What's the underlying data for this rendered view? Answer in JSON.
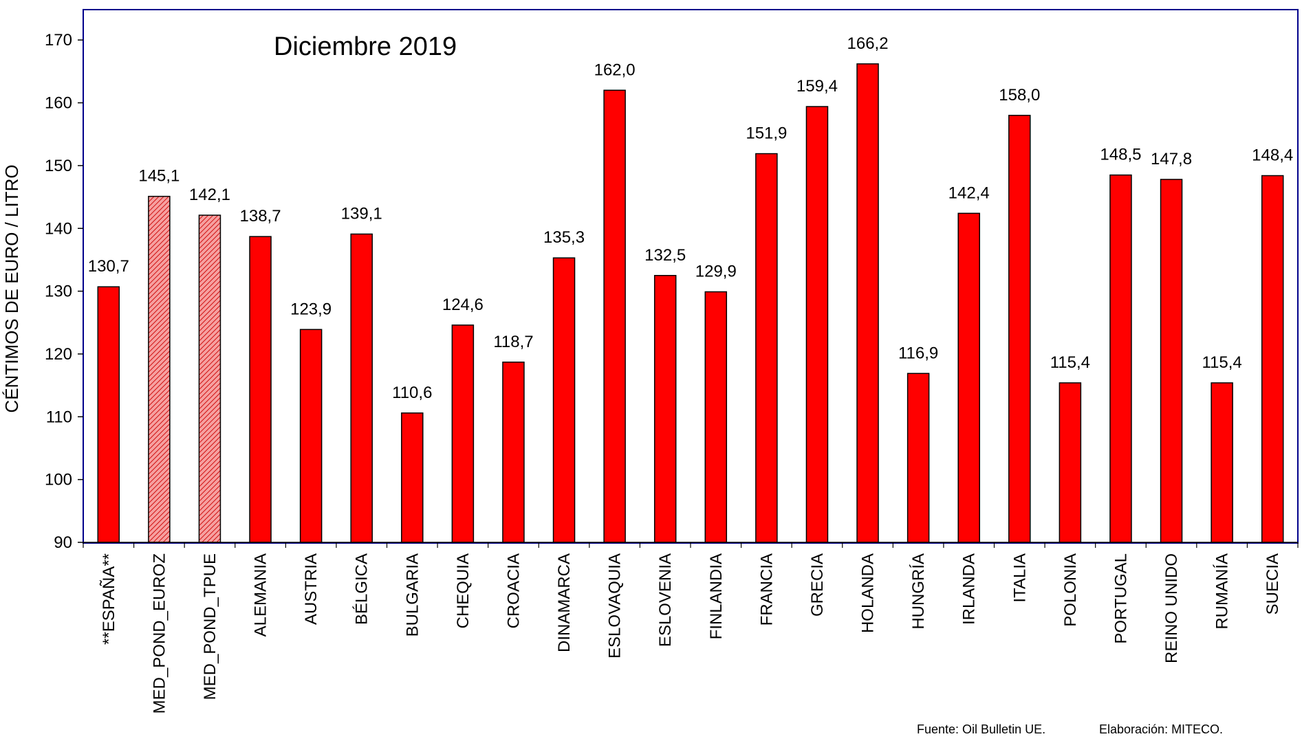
{
  "chart_data": {
    "type": "bar",
    "title": "Diciembre 2019",
    "ylabel": "CÉNTIMOS DE EURO / LITRO",
    "xlabel": "",
    "ylim": [
      90,
      175
    ],
    "yticks": [
      90,
      100,
      110,
      120,
      130,
      140,
      150,
      160,
      170
    ],
    "grid": false,
    "categories": [
      "**ESPAÑA**",
      "MED_POND_EUROZ",
      "MED_POND_TPUE",
      "ALEMANIA",
      "AUSTRIA",
      "BÉLGICA",
      "BULGARIA",
      "CHEQUIA",
      "CROACIA",
      "DINAMARCA",
      "ESLOVAQUIA",
      "ESLOVENIA",
      "FINLANDIA",
      "FRANCIA",
      "GRECIA",
      "HOLANDA",
      "HUNGRÍA",
      "IRLANDA",
      "ITALIA",
      "POLONIA",
      "PORTUGAL",
      "REINO UNIDO",
      "RUMANÍA",
      "SUECIA"
    ],
    "values": [
      130.7,
      145.1,
      142.1,
      138.7,
      123.9,
      139.1,
      110.6,
      124.6,
      118.7,
      135.3,
      162.0,
      132.5,
      129.9,
      151.9,
      159.4,
      166.2,
      116.9,
      142.4,
      158.0,
      115.4,
      148.5,
      147.8,
      115.4,
      148.4
    ],
    "value_labels": [
      "130,7",
      "145,1",
      "142,1",
      "138,7",
      "123,9",
      "139,1",
      "110,6",
      "124,6",
      "118,7",
      "135,3",
      "162,0",
      "132,5",
      "129,9",
      "151,9",
      "159,4",
      "166,2",
      "116,9",
      "142,4",
      "158,0",
      "115,4",
      "148,5",
      "147,8",
      "115,4",
      "148,4"
    ],
    "hatched": [
      false,
      true,
      true,
      false,
      false,
      false,
      false,
      false,
      false,
      false,
      false,
      false,
      false,
      false,
      false,
      false,
      false,
      false,
      false,
      false,
      false,
      false,
      false,
      false
    ],
    "colors": {
      "bar": "#ff0000",
      "hatch": "#f08080",
      "outline": "#000000",
      "frame": "#00008b"
    }
  },
  "footer": {
    "source": "Fuente: Oil Bulletin UE.",
    "credit": "Elaboración: MITECO."
  }
}
